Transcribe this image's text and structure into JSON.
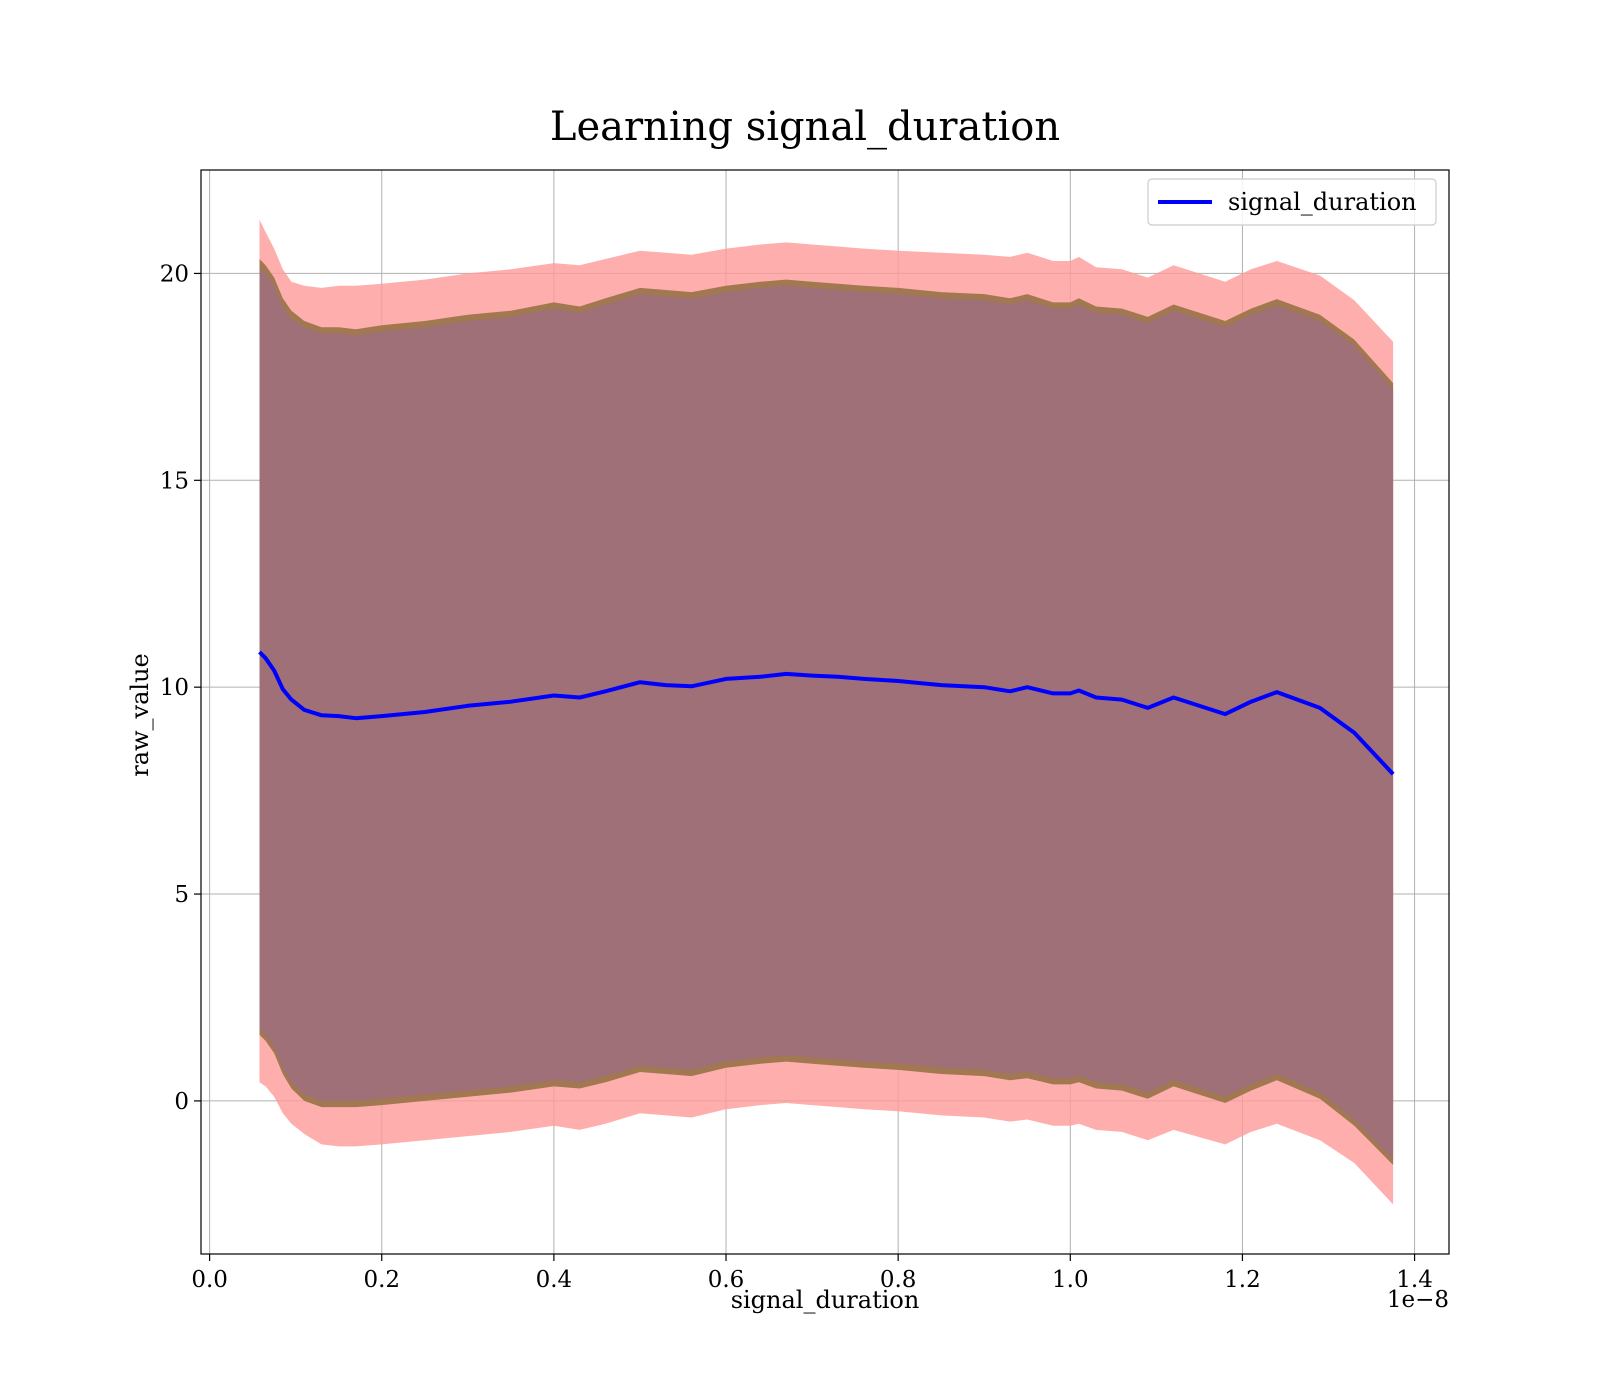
{
  "chart_data": {
    "type": "line",
    "title": "Learning signal_duration",
    "xlabel": "signal_duration",
    "ylabel": "raw_value",
    "x_offset_label": "1e−8",
    "xlim": [
      -0.01,
      1.44
    ],
    "ylim": [
      -3.7,
      22.5
    ],
    "x_ticks": [
      0.0,
      0.2,
      0.4,
      0.6,
      0.8,
      1.0,
      1.2,
      1.4
    ],
    "x_tick_labels": [
      "0.0",
      "0.2",
      "0.4",
      "0.6",
      "0.8",
      "1.0",
      "1.2",
      "1.4"
    ],
    "y_ticks": [
      0,
      5,
      10,
      15,
      20
    ],
    "y_tick_labels": [
      "0",
      "5",
      "10",
      "15",
      "20"
    ],
    "grid": true,
    "legend_position": "top-right",
    "colors": {
      "line": "#0000ff",
      "outer_band": "#ff9a9a",
      "middle_band": "#a1784f",
      "inner_band": "#a07079"
    },
    "series": [
      {
        "name": "signal_duration",
        "x": [
          0.058,
          0.065,
          0.075,
          0.085,
          0.095,
          0.11,
          0.13,
          0.15,
          0.17,
          0.2,
          0.25,
          0.3,
          0.35,
          0.4,
          0.43,
          0.46,
          0.5,
          0.53,
          0.56,
          0.6,
          0.64,
          0.67,
          0.7,
          0.73,
          0.76,
          0.8,
          0.85,
          0.9,
          0.93,
          0.95,
          0.98,
          1.0,
          1.01,
          1.03,
          1.06,
          1.09,
          1.12,
          1.18,
          1.21,
          1.24,
          1.29,
          1.33,
          1.375
        ],
        "values": [
          10.85,
          10.7,
          10.4,
          9.95,
          9.7,
          9.45,
          9.32,
          9.3,
          9.25,
          9.3,
          9.4,
          9.55,
          9.65,
          9.8,
          9.75,
          9.9,
          10.12,
          10.05,
          10.02,
          10.2,
          10.25,
          10.32,
          10.28,
          10.25,
          10.2,
          10.15,
          10.05,
          10.0,
          9.9,
          10.0,
          9.85,
          9.85,
          9.92,
          9.75,
          9.7,
          9.5,
          9.75,
          9.35,
          9.65,
          9.88,
          9.5,
          8.9,
          7.9
        ]
      }
    ],
    "bands": [
      {
        "color_key": "outer_band",
        "upper": [
          21.3,
          21.0,
          20.6,
          20.1,
          19.8,
          19.7,
          19.65,
          19.7,
          19.7,
          19.75,
          19.85,
          20.0,
          20.1,
          20.25,
          20.2,
          20.35,
          20.55,
          20.5,
          20.45,
          20.6,
          20.7,
          20.75,
          20.7,
          20.65,
          20.6,
          20.55,
          20.5,
          20.45,
          20.4,
          20.5,
          20.3,
          20.3,
          20.4,
          20.15,
          20.1,
          19.9,
          20.2,
          19.8,
          20.1,
          20.3,
          19.95,
          19.35,
          18.35
        ],
        "lower": [
          0.45,
          0.35,
          0.1,
          -0.3,
          -0.55,
          -0.8,
          -1.05,
          -1.1,
          -1.1,
          -1.05,
          -0.95,
          -0.85,
          -0.75,
          -0.6,
          -0.7,
          -0.55,
          -0.3,
          -0.35,
          -0.4,
          -0.2,
          -0.1,
          -0.05,
          -0.1,
          -0.15,
          -0.2,
          -0.25,
          -0.35,
          -0.4,
          -0.5,
          -0.45,
          -0.6,
          -0.6,
          -0.55,
          -0.7,
          -0.75,
          -0.95,
          -0.7,
          -1.05,
          -0.75,
          -0.55,
          -0.95,
          -1.5,
          -2.5
        ]
      },
      {
        "color_key": "middle_band",
        "upper": [
          20.35,
          20.2,
          19.9,
          19.4,
          19.1,
          18.85,
          18.7,
          18.7,
          18.65,
          18.75,
          18.85,
          19.0,
          19.1,
          19.3,
          19.2,
          19.4,
          19.65,
          19.6,
          19.55,
          19.7,
          19.8,
          19.85,
          19.8,
          19.75,
          19.7,
          19.65,
          19.55,
          19.5,
          19.4,
          19.5,
          19.3,
          19.3,
          19.4,
          19.2,
          19.15,
          18.95,
          19.25,
          18.85,
          19.15,
          19.38,
          19.0,
          18.4,
          17.35
        ],
        "lower": [
          1.6,
          1.45,
          1.15,
          0.65,
          0.3,
          0.0,
          -0.15,
          -0.15,
          -0.15,
          -0.1,
          0.0,
          0.1,
          0.2,
          0.35,
          0.3,
          0.45,
          0.7,
          0.65,
          0.6,
          0.8,
          0.9,
          0.95,
          0.9,
          0.85,
          0.8,
          0.75,
          0.65,
          0.6,
          0.5,
          0.55,
          0.4,
          0.4,
          0.45,
          0.3,
          0.25,
          0.05,
          0.35,
          -0.05,
          0.25,
          0.5,
          0.05,
          -0.6,
          -1.55
        ]
      },
      {
        "color_key": "inner_band",
        "upper": [
          20.15,
          20.0,
          19.7,
          19.2,
          18.9,
          18.7,
          18.55,
          18.55,
          18.5,
          18.6,
          18.7,
          18.85,
          18.95,
          19.15,
          19.05,
          19.25,
          19.5,
          19.45,
          19.4,
          19.55,
          19.65,
          19.7,
          19.65,
          19.6,
          19.55,
          19.5,
          19.4,
          19.35,
          19.25,
          19.35,
          19.15,
          19.15,
          19.25,
          19.05,
          19.0,
          18.8,
          19.1,
          18.7,
          19.0,
          19.22,
          18.85,
          18.25,
          17.2
        ],
        "lower": [
          1.75,
          1.6,
          1.3,
          0.8,
          0.45,
          0.15,
          0.0,
          0.0,
          0.0,
          0.05,
          0.15,
          0.25,
          0.35,
          0.5,
          0.45,
          0.6,
          0.85,
          0.8,
          0.75,
          0.95,
          1.05,
          1.1,
          1.05,
          1.0,
          0.95,
          0.9,
          0.8,
          0.75,
          0.65,
          0.7,
          0.55,
          0.55,
          0.6,
          0.45,
          0.4,
          0.2,
          0.5,
          0.1,
          0.4,
          0.65,
          0.2,
          -0.45,
          -1.4
        ]
      }
    ]
  }
}
